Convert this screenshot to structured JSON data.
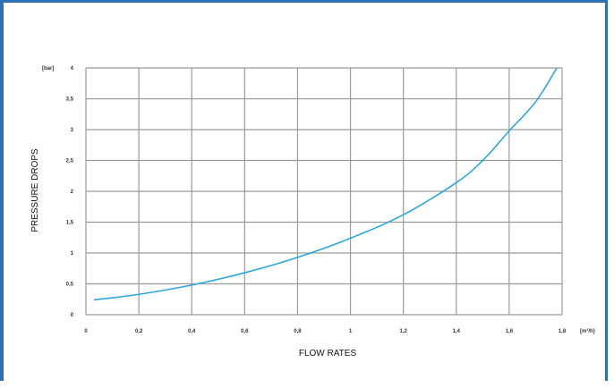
{
  "chart_data": {
    "type": "line",
    "title": "",
    "xlabel": "FLOW RATES",
    "ylabel": "PRESSURE DROPS",
    "x_unit": "[m³/h]",
    "y_unit": "[bar]",
    "xlim": [
      0,
      1.8
    ],
    "ylim": [
      0,
      4
    ],
    "x_ticks": [
      "0",
      "0,2",
      "0,4",
      "0,6",
      "0,8",
      "1",
      "1,2",
      "1,4",
      "1,6",
      "1,8"
    ],
    "y_ticks": [
      "0",
      "0,5",
      "1",
      "1,5",
      "2",
      "2,5",
      "3",
      "3,5",
      "4"
    ],
    "grid": true,
    "series": [
      {
        "color": "#2aa7e0",
        "x": [
          0.03,
          0.2,
          0.4,
          0.6,
          0.8,
          1.0,
          1.2,
          1.4,
          1.5,
          1.6,
          1.7,
          1.78
        ],
        "y": [
          0.24,
          0.33,
          0.48,
          0.68,
          0.93,
          1.24,
          1.62,
          2.14,
          2.5,
          2.98,
          3.45,
          4.0
        ]
      }
    ]
  }
}
